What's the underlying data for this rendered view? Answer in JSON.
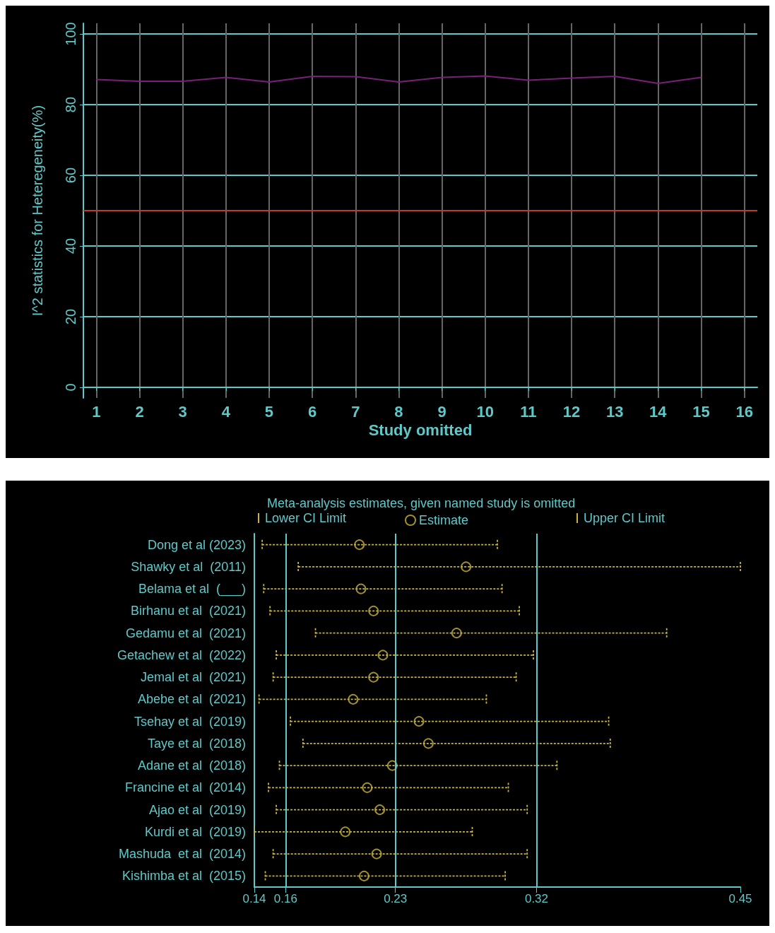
{
  "chart_data": [
    {
      "type": "line",
      "xlabel": "Study omitted",
      "ylabel": "I^2 statistics for Heteregeneity(%)",
      "x": [
        1,
        2,
        3,
        4,
        5,
        6,
        7,
        8,
        9,
        10,
        11,
        12,
        13,
        14,
        15
      ],
      "series": [
        {
          "color": "#7a1f7a",
          "values": [
            87.1,
            86.6,
            86.6,
            87.7,
            86.4,
            88.0,
            87.9,
            86.4,
            87.7,
            88.1,
            86.9,
            87.5,
            88.0,
            86.0,
            87.7
          ]
        }
      ],
      "xlim": [
        0.7,
        16.3
      ],
      "xticks": [
        1,
        2,
        3,
        4,
        5,
        6,
        7,
        8,
        9,
        10,
        11,
        12,
        13,
        14,
        15,
        16
      ],
      "ylim": [
        -3,
        103
      ],
      "yticks": [
        0,
        20,
        40,
        60,
        80,
        100
      ],
      "grid": true,
      "marker": "none",
      "ref_lines": [
        {
          "axis": "y",
          "value": 50,
          "color": "#c0392b"
        }
      ]
    },
    {
      "type": "scatter",
      "orientation": "horizontal",
      "title": "Meta-analysis estimates, given named study is omitted",
      "categories": [
        "Dong et al (2023)",
        "Shawky et al  (2011)",
        "Belama et al  (___)",
        "Birhanu et al  (2021)",
        "Gedamu et al  (2021)",
        "Getachew et al  (2022)",
        "Jemal et al  (2021)",
        "Abebe et al  (2021)",
        "Tsehay et al  (2019)",
        "Taye et al  (2018)",
        "Adane et al  (2018)",
        "Francine et al  (2014)",
        "Ajao et al  (2019)",
        "Kurdi et al  (2019)",
        "Mashuda  et al  (2014)",
        "Kishimba et al  (2015)"
      ],
      "series": [
        {
          "name": "Estimate",
          "color": "#c8b43c",
          "marker": "circle",
          "values": [
            0.207,
            0.275,
            0.208,
            0.216,
            0.269,
            0.222,
            0.216,
            0.203,
            0.245,
            0.251,
            0.228,
            0.212,
            0.22,
            0.198,
            0.218,
            0.21
          ],
          "errors": [
            [
              0.145,
              0.295
            ],
            [
              0.168,
              0.45
            ],
            [
              0.146,
              0.298
            ],
            [
              0.15,
              0.309
            ],
            [
              0.179,
              0.403
            ],
            [
              0.154,
              0.318
            ],
            [
              0.152,
              0.307
            ],
            [
              0.143,
              0.288
            ],
            [
              0.163,
              0.366
            ],
            [
              0.171,
              0.367
            ],
            [
              0.156,
              0.333
            ],
            [
              0.149,
              0.302
            ],
            [
              0.154,
              0.314
            ],
            [
              0.14,
              0.279
            ],
            [
              0.152,
              0.314
            ],
            [
              0.147,
              0.3
            ]
          ]
        }
      ],
      "annotations": [
        "Lower CI Limit",
        "Upper CI Limit"
      ],
      "line_style": "dotted",
      "legend": "top",
      "xlim": [
        0.14,
        0.45
      ],
      "xticks": [
        0.14,
        0.16,
        0.23,
        0.32,
        0.45
      ],
      "ref_lines": [
        {
          "axis": "x",
          "value": 0.16,
          "color": "#5fc8c8"
        },
        {
          "axis": "x",
          "value": 0.23,
          "color": "#5fc8c8"
        },
        {
          "axis": "x",
          "value": 0.32,
          "color": "#5fc8c8"
        }
      ]
    }
  ]
}
